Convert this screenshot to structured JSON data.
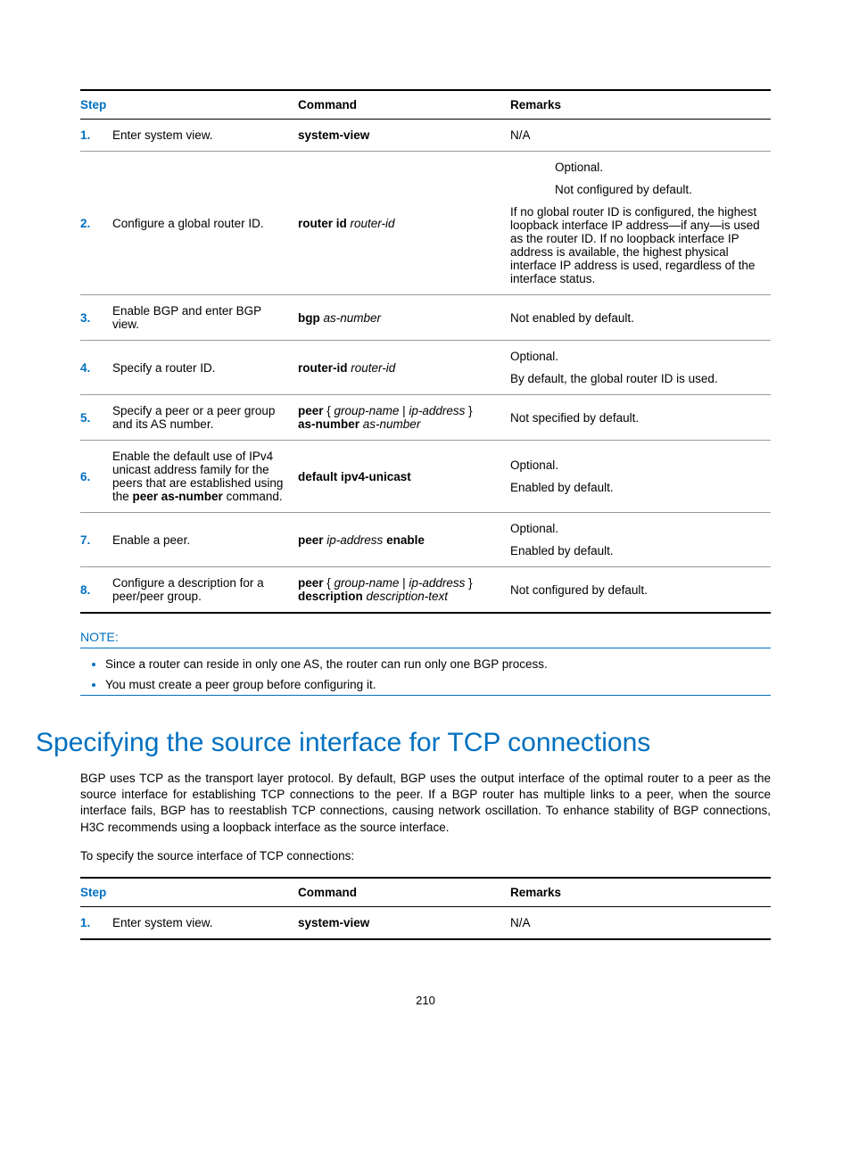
{
  "table1": {
    "headers": {
      "step": "Step",
      "command": "Command",
      "remarks": "Remarks"
    },
    "rows": [
      {
        "num": "1.",
        "desc": "Enter system view.",
        "cmd_bold": "system-view",
        "remarks": "N/A"
      },
      {
        "num": "2.",
        "desc": "Configure a global router ID.",
        "cmd_bold": "router id ",
        "cmd_italic": "router-id",
        "remarks_opt": "Optional.",
        "remarks_sub": "Not configured by default.",
        "remarks_main": "If no global router ID is configured, the highest loopback interface IP address—if any—is used as the router ID. If no loopback interface IP address is available, the highest physical interface IP address is used, regardless of the interface status."
      },
      {
        "num": "3.",
        "desc": "Enable BGP and enter BGP view.",
        "cmd_bold": "bgp ",
        "cmd_italic": "as-number",
        "remarks": "Not enabled by default."
      },
      {
        "num": "4.",
        "desc": "Specify a router ID.",
        "cmd_bold": "router-id ",
        "cmd_italic": "router-id",
        "remarks_opt": "Optional.",
        "remarks_main": "By default, the global router ID is used."
      },
      {
        "num": "5.",
        "desc": "Specify a peer or a peer group and its AS number.",
        "cmd_part1_bold": "peer ",
        "cmd_part1_plain": "{ ",
        "cmd_part1_ital": "group-name",
        "cmd_part1_sep": " | ",
        "cmd_part1_ital2": "ip-address",
        "cmd_part1_close": " } ",
        "cmd_part2_bold": "as-number ",
        "cmd_part2_ital": "as-number",
        "remarks": "Not specified by default."
      },
      {
        "num": "6.",
        "desc_pre": "Enable the default use of IPv4 unicast address family for the peers that are established using the ",
        "desc_bold": "peer as-number",
        "desc_post": " command.",
        "cmd_bold": "default ipv4-unicast",
        "remarks_opt": "Optional.",
        "remarks_main": "Enabled by default."
      },
      {
        "num": "7.",
        "desc": "Enable a peer.",
        "cmd_bold1": "peer ",
        "cmd_ital": "ip-address",
        "cmd_bold2": " enable",
        "remarks_opt": "Optional.",
        "remarks_main": "Enabled by default."
      },
      {
        "num": "8.",
        "desc": "Configure a description for a peer/peer group.",
        "cmd_part1_bold": "peer ",
        "cmd_part1_plain": "{ ",
        "cmd_part1_ital": "group-name",
        "cmd_part1_sep": " | ",
        "cmd_part1_ital2": "ip-address",
        "cmd_part1_close": " } ",
        "cmd_part2_bold": "description ",
        "cmd_part2_ital": "description-text",
        "remarks": "Not configured by default."
      }
    ]
  },
  "note": {
    "label": "NOTE:",
    "items": [
      "Since a router can reside in only one AS, the router can run only one BGP process.",
      "You must create a peer group before configuring it."
    ]
  },
  "heading": "Specifying the source interface for TCP connections",
  "paragraph1": "BGP uses TCP as the transport layer protocol. By default, BGP uses the output interface of the optimal router to a peer as the source interface for establishing TCP connections to the peer. If a BGP router has multiple links to a peer, when the source interface fails, BGP has to reestablish TCP connections, causing network oscillation. To enhance stability of BGP connections, H3C recommends using a loopback interface as the source interface.",
  "paragraph2": "To specify the source interface of TCP connections:",
  "table2": {
    "headers": {
      "step": "Step",
      "command": "Command",
      "remarks": "Remarks"
    },
    "rows": [
      {
        "num": "1.",
        "desc": "Enter system view.",
        "cmd_bold": "system-view",
        "remarks": "N/A"
      }
    ]
  },
  "page_number": "210"
}
